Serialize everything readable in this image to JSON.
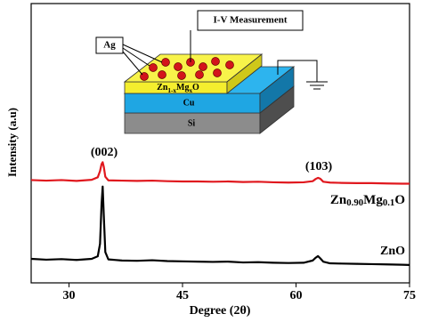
{
  "chart_data": {
    "type": "line",
    "x_label": "Degree (2θ)",
    "y_label": "Intensity (a.u)",
    "x": [
      25,
      27,
      29,
      31,
      33,
      33.8,
      34.1,
      34.3,
      34.45,
      34.6,
      34.8,
      35.2,
      37,
      39,
      41,
      43,
      45,
      47,
      49,
      51,
      53,
      55,
      57,
      59,
      61,
      62.2,
      62.6,
      62.9,
      63.2,
      63.6,
      64.5,
      66,
      68,
      70,
      72,
      74,
      75
    ],
    "series": [
      {
        "name": "ZnO",
        "color": "#000000",
        "values": [
          8.6,
          8.3,
          8.5,
          8.2,
          8.6,
          9.5,
          14,
          28,
          34.5,
          24,
          11,
          8.4,
          8.0,
          7.9,
          8.1,
          7.8,
          7.7,
          7.6,
          7.5,
          7.6,
          7.3,
          7.4,
          7.2,
          7.1,
          7.2,
          8.0,
          9.0,
          9.6,
          8.8,
          7.6,
          7.0,
          6.9,
          6.8,
          6.7,
          6.6,
          6.5,
          6.4
        ]
      },
      {
        "name": "Zn0.90Mg0.1O",
        "color": "#e0181e",
        "values": [
          36.8,
          36.6,
          36.8,
          36.5,
          36.9,
          37.8,
          40,
          42.5,
          43.2,
          41.5,
          38,
          36.7,
          36.6,
          36.5,
          36.6,
          36.4,
          36.3,
          36.3,
          36.2,
          36.3,
          36.1,
          36.2,
          36.0,
          35.9,
          36.0,
          36.4,
          37.2,
          37.6,
          37.3,
          36.2,
          35.9,
          35.8,
          35.7,
          35.7,
          35.6,
          35.5,
          35.5
        ]
      }
    ],
    "annotations": [
      "(002)",
      "(103)"
    ],
    "xlim": [
      25,
      75
    ],
    "xticks": [
      30,
      45,
      60,
      75
    ],
    "ylim": [
      0,
      100
    ]
  },
  "diagram": {
    "measurement": "I-V Measurement",
    "electrode": "Ag",
    "layers": [
      "Zn1-xMgxO",
      "Cu",
      "Si"
    ]
  }
}
